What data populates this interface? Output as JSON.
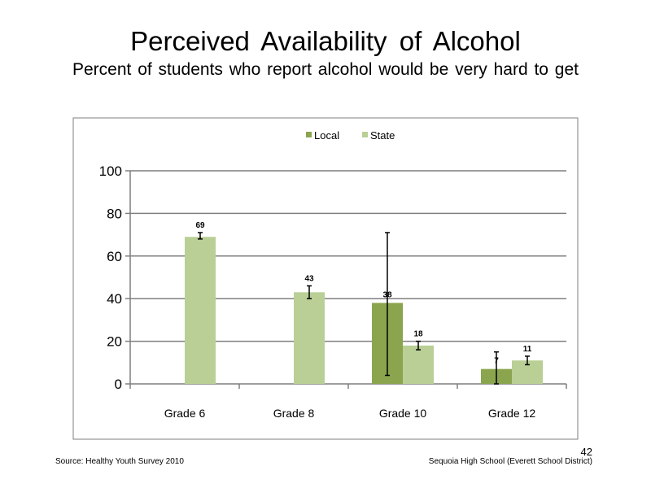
{
  "slide": {
    "title": "Perceived  Availability  of Alcohol",
    "subtitle": "Percent of students  who report alcohol would be very hard to get",
    "source": "Source: Healthy Youth Survey 2010",
    "school": "Sequoia High  School (Everett School District)",
    "slide_number": "42"
  },
  "colors": {
    "local": "#8aa54e",
    "state": "#b9cf96",
    "frame": "#7f7f7f",
    "grid": "#7f7f7f"
  },
  "chart_data": {
    "type": "bar",
    "title": "",
    "xlabel": "",
    "ylabel": "",
    "categories": [
      "Grade 6",
      "Grade 8",
      "Grade 10",
      "Grade 12"
    ],
    "ylim": [
      0,
      100
    ],
    "yticks": [
      0,
      20,
      40,
      60,
      80,
      100
    ],
    "grid": true,
    "legend": "top-center",
    "series": [
      {
        "name": "Local",
        "values": [
          null,
          null,
          38,
          7
        ],
        "labels": [
          "",
          "",
          "38",
          "7"
        ],
        "error_low": [
          null,
          null,
          4,
          0
        ],
        "error_high": [
          null,
          null,
          71,
          15
        ]
      },
      {
        "name": "State",
        "values": [
          69,
          43,
          18,
          11
        ],
        "labels": [
          "69",
          "43",
          "18",
          "11"
        ],
        "error_low": [
          68,
          40,
          16,
          9
        ],
        "error_high": [
          71,
          46,
          20,
          13
        ]
      }
    ]
  }
}
